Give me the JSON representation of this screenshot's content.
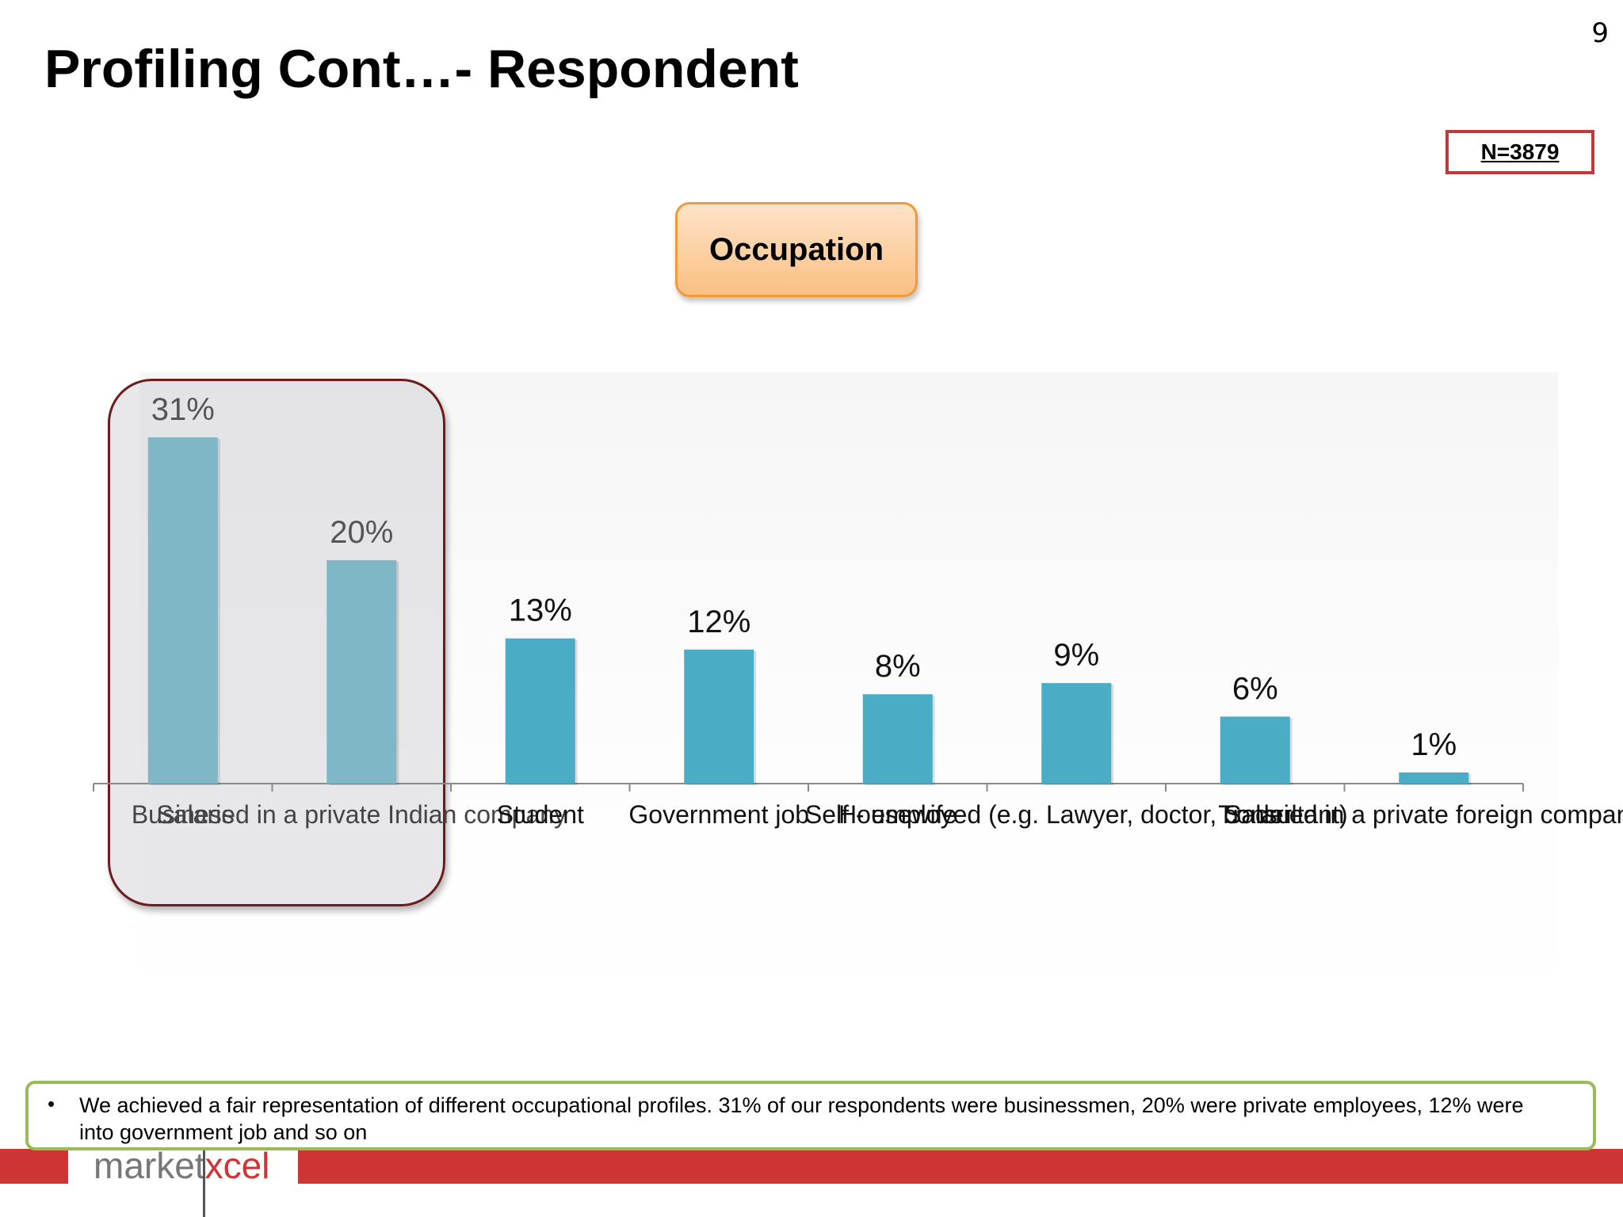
{
  "page": {
    "number": "9",
    "title": "Profiling Cont…- Respondent",
    "sample_size": "N=3879",
    "chart_heading": "Occupation"
  },
  "note": {
    "bullet": "•",
    "text": "We achieved a fair representation of different occupational profiles. 31% of our respondents were businessmen, 20% were private employees, 12% were into government job and so on"
  },
  "logo": {
    "part1": "market",
    "part2": "xcel"
  },
  "colors": {
    "bar": "#4bacc6",
    "bar_highlighted": "#7fb7c6",
    "highlight_border": "#6b1d1d",
    "heading_border": "#f29a3a",
    "badge_border": "#c0393b",
    "note_border": "#9bbb59",
    "footer_bar": "#cf3434"
  },
  "chart_data": {
    "type": "bar",
    "title": "Occupation",
    "categories": [
      "Business",
      "Salaried in a private Indian company",
      "Student",
      "Government job",
      "Housewife",
      "Self - employed (e.g. Lawyer, doctor, consultant)",
      "Trader",
      "Salaried in a private foreign company"
    ],
    "values": [
      31,
      20,
      13,
      12,
      8,
      9,
      6,
      1
    ],
    "value_labels": [
      "31%",
      "20%",
      "13%",
      "12%",
      "8%",
      "9%",
      "6%",
      "1%"
    ],
    "highlighted_categories": [
      0,
      1
    ],
    "ylim": [
      0,
      31
    ],
    "grid": false,
    "legend": "none"
  }
}
